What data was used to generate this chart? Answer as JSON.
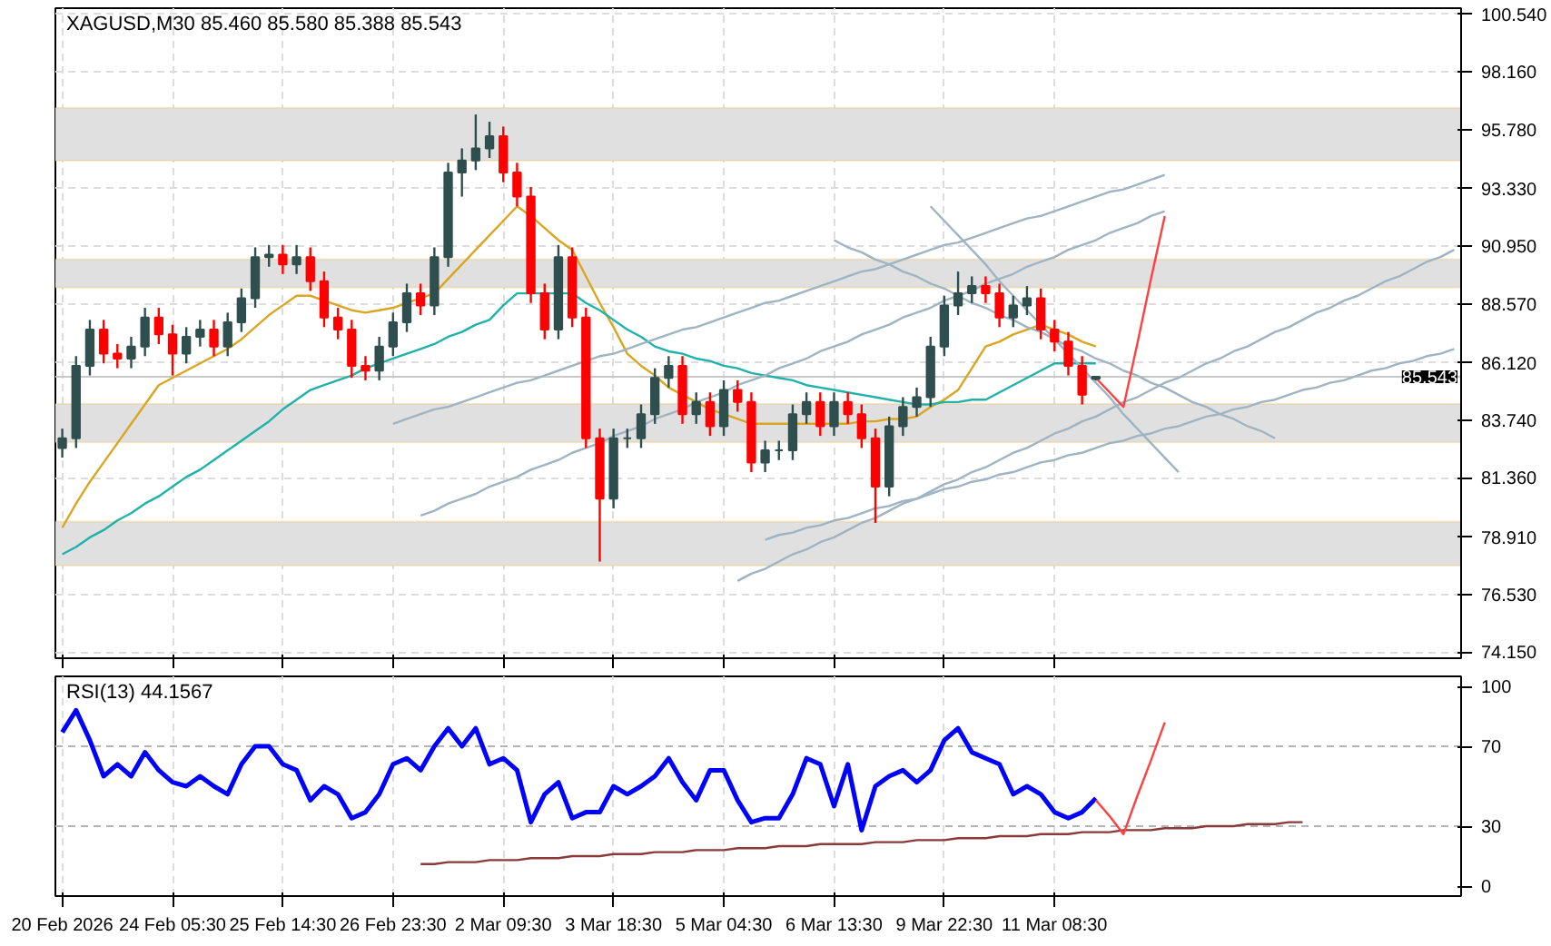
{
  "chart_data": [
    {
      "type": "candlestick",
      "title": "XAGUSD,M30 85.460 85.580 85.388 85.543",
      "categories": [
        null,
        null,
        null,
        null,
        null,
        null,
        null,
        null,
        null,
        null,
        null,
        null,
        null,
        null,
        null,
        null,
        null,
        null,
        null,
        null,
        null,
        null,
        null,
        null,
        null,
        null,
        null,
        null,
        null,
        null,
        null,
        null,
        null,
        null,
        null,
        null,
        null,
        null,
        null,
        null,
        null,
        null,
        null,
        null,
        null,
        null,
        null,
        null,
        null,
        null,
        null,
        null,
        null,
        null,
        null,
        null,
        null,
        null,
        null,
        null,
        null,
        null,
        null,
        null,
        null,
        null,
        null,
        null,
        null,
        null,
        null,
        null,
        null,
        null,
        null,
        null,
        null,
        null,
        null,
        null,
        null,
        null,
        null,
        null,
        null,
        null,
        null,
        null,
        null,
        null,
        null,
        null,
        null,
        null,
        null,
        null,
        null,
        null,
        null,
        null,
        null,
        null
      ],
      "ohlc": [
        [
          82.6,
          83.4,
          82.2,
          83.0
        ],
        [
          83.0,
          86.4,
          82.6,
          86.0
        ],
        [
          86.0,
          87.9,
          85.6,
          87.5
        ],
        [
          87.5,
          87.9,
          86.1,
          86.5
        ],
        [
          86.5,
          86.9,
          85.9,
          86.3
        ],
        [
          86.3,
          87.2,
          85.9,
          86.8
        ],
        [
          86.8,
          88.4,
          86.4,
          88.0
        ],
        [
          88.0,
          88.4,
          86.9,
          87.3
        ],
        [
          87.3,
          87.7,
          85.6,
          86.5
        ],
        [
          86.5,
          87.6,
          86.1,
          87.2
        ],
        [
          87.2,
          87.9,
          86.8,
          87.5
        ],
        [
          87.5,
          87.9,
          86.4,
          86.8
        ],
        [
          86.8,
          88.2,
          86.4,
          87.8
        ],
        [
          87.8,
          89.2,
          87.4,
          88.8
        ],
        [
          88.8,
          90.9,
          88.4,
          90.5
        ],
        [
          90.5,
          91.0,
          90.1,
          90.6
        ],
        [
          90.6,
          91.0,
          89.8,
          90.2
        ],
        [
          90.2,
          91.0,
          89.8,
          90.5
        ],
        [
          90.5,
          90.9,
          89.1,
          89.5
        ],
        [
          89.5,
          89.9,
          87.6,
          88.0
        ],
        [
          88.0,
          88.4,
          87.1,
          87.5
        ],
        [
          87.5,
          87.9,
          85.5,
          86.0
        ],
        [
          86.0,
          86.4,
          85.4,
          85.8
        ],
        [
          85.8,
          87.2,
          85.4,
          86.8
        ],
        [
          86.8,
          88.2,
          86.4,
          87.8
        ],
        [
          87.8,
          89.4,
          87.4,
          89.0
        ],
        [
          89.0,
          89.4,
          88.1,
          88.5
        ],
        [
          88.5,
          90.9,
          88.1,
          90.5
        ],
        [
          90.5,
          94.4,
          90.1,
          94.0
        ],
        [
          94.0,
          95.0,
          93.0,
          94.5
        ],
        [
          94.5,
          96.4,
          94.1,
          95.0
        ],
        [
          95.0,
          96.1,
          94.6,
          95.5
        ],
        [
          95.5,
          95.9,
          93.6,
          94.0
        ],
        [
          94.0,
          94.4,
          92.6,
          93.0
        ],
        [
          93.0,
          93.4,
          88.6,
          89.0
        ],
        [
          89.0,
          89.4,
          87.1,
          87.5
        ],
        [
          87.5,
          91.0,
          87.1,
          90.5
        ],
        [
          90.5,
          90.9,
          87.6,
          88.0
        ],
        [
          88.0,
          88.4,
          82.6,
          83.0
        ],
        [
          83.0,
          83.4,
          77.9,
          80.5
        ],
        [
          80.5,
          83.4,
          80.1,
          83.0
        ],
        [
          83.0,
          83.4,
          82.6,
          83.0
        ],
        [
          83.0,
          84.4,
          82.6,
          84.0
        ],
        [
          84.0,
          85.9,
          83.6,
          85.5
        ],
        [
          85.5,
          86.4,
          85.1,
          86.0
        ],
        [
          86.0,
          86.4,
          83.6,
          84.0
        ],
        [
          84.0,
          84.9,
          83.6,
          84.5
        ],
        [
          84.5,
          84.9,
          83.1,
          83.5
        ],
        [
          83.5,
          85.4,
          83.1,
          85.0
        ],
        [
          85.0,
          85.4,
          84.1,
          84.5
        ],
        [
          84.5,
          84.9,
          81.6,
          82.0
        ],
        [
          82.0,
          82.9,
          81.6,
          82.5
        ],
        [
          82.5,
          82.9,
          82.1,
          82.5
        ],
        [
          82.5,
          84.4,
          82.1,
          84.0
        ],
        [
          84.0,
          84.9,
          83.6,
          84.5
        ],
        [
          84.5,
          84.9,
          83.1,
          83.5
        ],
        [
          83.5,
          84.9,
          83.1,
          84.5
        ],
        [
          84.5,
          84.9,
          83.6,
          84.0
        ],
        [
          84.0,
          84.4,
          82.6,
          83.0
        ],
        [
          83.0,
          83.4,
          79.5,
          81.0
        ],
        [
          81.0,
          83.9,
          80.6,
          83.5
        ],
        [
          83.5,
          84.7,
          83.1,
          84.3
        ],
        [
          84.3,
          85.1,
          83.9,
          84.7
        ],
        [
          84.7,
          87.2,
          84.3,
          86.8
        ],
        [
          86.8,
          88.9,
          86.4,
          88.5
        ],
        [
          88.5,
          89.9,
          88.1,
          89.0
        ],
        [
          89.0,
          89.7,
          88.6,
          89.3
        ],
        [
          89.3,
          89.7,
          88.6,
          89.0
        ],
        [
          89.0,
          89.4,
          87.6,
          88.0
        ],
        [
          88.0,
          88.9,
          87.6,
          88.5
        ],
        [
          88.5,
          89.3,
          88.1,
          88.8
        ],
        [
          88.8,
          89.2,
          87.1,
          87.5
        ],
        [
          87.5,
          87.9,
          86.6,
          87.0
        ],
        [
          87.0,
          87.4,
          85.6,
          86.0
        ],
        [
          86.0,
          86.4,
          84.4,
          84.8
        ],
        [
          85.46,
          85.58,
          85.388,
          85.543
        ],
        null,
        null,
        null,
        null,
        null,
        null,
        null,
        null,
        null,
        null,
        null,
        null,
        null,
        null,
        null,
        null,
        null,
        null,
        null,
        null,
        null,
        null,
        null,
        null,
        null,
        null
      ],
      "colors": [
        "#2f4f4f",
        "#2f4f4f",
        "#2f4f4f",
        "#ff0000",
        "#ff0000",
        "#2f4f4f",
        "#2f4f4f",
        "#ff0000",
        "#ff0000",
        "#2f4f4f",
        "#2f4f4f",
        "#ff0000",
        "#2f4f4f",
        "#2f4f4f",
        "#2f4f4f",
        "#2f4f4f",
        "#ff0000",
        "#2f4f4f",
        "#ff0000",
        "#ff0000",
        "#ff0000",
        "#ff0000",
        "#ff0000",
        "#2f4f4f",
        "#2f4f4f",
        "#2f4f4f",
        "#ff0000",
        "#2f4f4f",
        "#2f4f4f",
        "#2f4f4f",
        "#2f4f4f",
        "#2f4f4f",
        "#ff0000",
        "#ff0000",
        "#ff0000",
        "#ff0000",
        "#2f4f4f",
        "#ff0000",
        "#ff0000",
        "#ff0000",
        "#2f4f4f",
        "#2f4f4f",
        "#2f4f4f",
        "#2f4f4f",
        "#2f4f4f",
        "#ff0000",
        "#2f4f4f",
        "#ff0000",
        "#2f4f4f",
        "#ff0000",
        "#ff0000",
        "#2f4f4f",
        "#2f4f4f",
        "#2f4f4f",
        "#2f4f4f",
        "#ff0000",
        "#2f4f4f",
        "#ff0000",
        "#ff0000",
        "#ff0000",
        "#2f4f4f",
        "#2f4f4f",
        "#2f4f4f",
        "#2f4f4f",
        "#2f4f4f",
        "#2f4f4f",
        "#2f4f4f",
        "#ff0000",
        "#ff0000",
        "#2f4f4f",
        "#2f4f4f",
        "#ff0000",
        "#ff0000",
        "#ff0000",
        "#ff0000",
        "#2f4f4f",
        null,
        null,
        null,
        null,
        null,
        null,
        null,
        null,
        null,
        null,
        null,
        null,
        null,
        null,
        null,
        null,
        null,
        null,
        null,
        null,
        null,
        null,
        null,
        null,
        null,
        null
      ],
      "series": [
        {
          "type": "line",
          "color": "#daa520",
          "values": [
            79.3,
            80.3,
            81.2,
            82.0,
            82.8,
            83.6,
            84.4,
            85.2,
            85.5,
            85.8,
            86.1,
            86.4,
            86.7,
            87.1,
            87.6,
            88.1,
            88.5,
            88.9,
            88.9,
            88.7,
            88.5,
            88.3,
            88.2,
            88.3,
            88.4,
            88.6,
            88.8,
            89.0,
            89.6,
            90.2,
            90.8,
            91.4,
            92.0,
            92.6,
            92.2,
            91.7,
            91.2,
            90.8,
            89.7,
            88.6,
            87.6,
            86.5,
            86.0,
            85.6,
            85.1,
            84.8,
            84.5,
            84.2,
            84.0,
            83.8,
            83.6,
            83.6,
            83.6,
            83.6,
            83.6,
            83.6,
            83.6,
            83.6,
            83.7,
            83.7,
            83.8,
            83.8,
            83.9,
            84.3,
            84.6,
            85.0,
            85.9,
            86.8,
            87.0,
            87.3,
            87.5,
            87.7,
            87.5,
            87.3,
            87.0,
            86.8,
            null,
            null,
            null,
            null,
            null,
            null,
            null,
            null,
            null,
            null,
            null,
            null,
            null,
            null,
            null,
            null,
            null,
            null,
            null,
            null,
            null,
            null,
            null,
            null,
            null,
            null
          ]
        },
        {
          "type": "line",
          "color": "#20b2aa",
          "values": [
            78.2,
            78.5,
            78.9,
            79.2,
            79.6,
            79.9,
            80.3,
            80.6,
            81.0,
            81.4,
            81.7,
            82.1,
            82.5,
            82.9,
            83.3,
            83.7,
            84.2,
            84.6,
            85.0,
            85.2,
            85.4,
            85.6,
            85.9,
            86.1,
            86.3,
            86.5,
            86.7,
            86.9,
            87.2,
            87.4,
            87.7,
            87.9,
            88.5,
            89.0,
            89.0,
            89.0,
            89.0,
            89.0,
            88.6,
            88.3,
            87.9,
            87.5,
            87.2,
            86.8,
            86.6,
            86.5,
            86.3,
            86.2,
            86.0,
            85.9,
            85.7,
            85.6,
            85.5,
            85.4,
            85.2,
            85.1,
            85.0,
            84.9,
            84.8,
            84.7,
            84.6,
            84.5,
            84.4,
            84.4,
            84.5,
            84.5,
            84.6,
            84.6,
            84.9,
            85.2,
            85.5,
            85.8,
            86.1,
            86.1,
            86.1,
            86.1,
            null,
            null,
            null,
            null,
            null,
            null,
            null,
            null,
            null,
            null,
            null,
            null,
            null,
            null,
            null,
            null,
            null,
            null,
            null,
            null,
            null,
            null,
            null,
            null,
            null,
            null
          ]
        },
        {
          "type": "line",
          "color": "#9fb4c2",
          "values": [
            null,
            null,
            null,
            null,
            null,
            null,
            null,
            null,
            null,
            null,
            null,
            null,
            null,
            null,
            null,
            null,
            null,
            null,
            null,
            null,
            null,
            null,
            null,
            null,
            83.6,
            83.8,
            84.0,
            84.2,
            84.3,
            84.5,
            84.7,
            84.9,
            85.1,
            85.3,
            85.4,
            85.6,
            85.8,
            86.0,
            86.2,
            86.4,
            86.5,
            86.7,
            86.9,
            87.1,
            87.3,
            87.5,
            87.6,
            87.8,
            88.0,
            88.2,
            88.4,
            88.6,
            88.7,
            88.9,
            89.1,
            89.3,
            89.5,
            89.7,
            89.9,
            90.0,
            90.2,
            90.4,
            90.6,
            90.8,
            91.0,
            91.1,
            91.3,
            91.5,
            91.7,
            91.9,
            92.1,
            92.2,
            92.4,
            92.6,
            92.8,
            93.0,
            93.2,
            93.3,
            93.5,
            93.7,
            93.9,
            null,
            null,
            null,
            null,
            null,
            null,
            null,
            null,
            null,
            null,
            null,
            null,
            null,
            null,
            null,
            null,
            null,
            null,
            null,
            null,
            null
          ]
        },
        {
          "type": "line",
          "color": "#9fb4c2",
          "values": [
            null,
            null,
            null,
            null,
            null,
            null,
            null,
            null,
            null,
            null,
            null,
            null,
            null,
            null,
            null,
            null,
            null,
            null,
            null,
            null,
            null,
            null,
            null,
            null,
            null,
            null,
            79.8,
            80.0,
            80.3,
            80.5,
            80.7,
            81.0,
            81.2,
            81.4,
            81.7,
            81.9,
            82.1,
            82.4,
            82.6,
            82.8,
            83.1,
            83.3,
            83.5,
            83.8,
            84.0,
            84.2,
            84.5,
            84.7,
            84.9,
            85.2,
            85.4,
            85.6,
            85.9,
            86.1,
            86.3,
            86.6,
            86.8,
            87.0,
            87.3,
            87.5,
            87.7,
            88.0,
            88.2,
            88.4,
            88.7,
            88.9,
            89.1,
            89.4,
            89.6,
            89.8,
            90.1,
            90.3,
            90.5,
            90.8,
            91.0,
            91.2,
            91.5,
            91.7,
            91.9,
            92.2,
            92.4,
            null,
            null,
            null,
            null,
            null,
            null,
            null,
            null,
            null,
            null,
            null,
            null,
            null,
            null,
            null,
            null,
            null,
            null,
            null,
            null,
            null
          ]
        },
        {
          "type": "line",
          "color": "#9fb4c2",
          "values": [
            null,
            null,
            null,
            null,
            null,
            null,
            null,
            null,
            null,
            null,
            null,
            null,
            null,
            null,
            null,
            null,
            null,
            null,
            null,
            null,
            null,
            null,
            null,
            null,
            null,
            null,
            null,
            null,
            null,
            null,
            null,
            null,
            null,
            null,
            null,
            null,
            null,
            null,
            null,
            null,
            null,
            null,
            null,
            null,
            null,
            null,
            null,
            null,
            null,
            null,
            null,
            null,
            null,
            null,
            null,
            null,
            91.2,
            90.9,
            90.7,
            90.4,
            90.2,
            89.9,
            89.7,
            89.4,
            89.2,
            88.9,
            88.6,
            88.4,
            88.1,
            87.9,
            87.6,
            87.4,
            87.1,
            86.8,
            86.6,
            86.3,
            86.1,
            85.8,
            85.6,
            85.3,
            85.1,
            84.8,
            84.5,
            84.3,
            84.0,
            83.8,
            83.5,
            83.3,
            83.0,
            null,
            null,
            null,
            null,
            null,
            null,
            null,
            null,
            null,
            null,
            null,
            null,
            null
          ]
        },
        {
          "type": "line",
          "color": "#9fb4c2",
          "values": [
            null,
            null,
            null,
            null,
            null,
            null,
            null,
            null,
            null,
            null,
            null,
            null,
            null,
            null,
            null,
            null,
            null,
            null,
            null,
            null,
            null,
            null,
            null,
            null,
            null,
            null,
            null,
            null,
            null,
            null,
            null,
            null,
            null,
            null,
            null,
            null,
            null,
            null,
            null,
            null,
            null,
            null,
            null,
            null,
            null,
            null,
            null,
            null,
            null,
            null,
            null,
            null,
            null,
            null,
            null,
            null,
            null,
            null,
            null,
            null,
            null,
            null,
            null,
            92.6,
            92.0,
            91.4,
            90.8,
            90.2,
            89.5,
            88.9,
            88.3,
            87.7,
            87.1,
            86.5,
            85.9,
            85.3,
            84.7,
            84.0,
            83.4,
            82.8,
            82.2,
            81.6,
            null,
            null,
            null,
            null,
            null,
            null,
            null,
            null,
            null,
            null,
            null,
            null,
            null,
            null,
            null,
            null,
            null,
            null,
            null,
            null
          ]
        },
        {
          "type": "line",
          "color": "#9fb4c2",
          "values": [
            null,
            null,
            null,
            null,
            null,
            null,
            null,
            null,
            null,
            null,
            null,
            null,
            null,
            null,
            null,
            null,
            null,
            null,
            null,
            null,
            null,
            null,
            null,
            null,
            null,
            null,
            null,
            null,
            null,
            null,
            null,
            null,
            null,
            null,
            null,
            null,
            null,
            null,
            null,
            null,
            null,
            null,
            null,
            null,
            null,
            null,
            null,
            null,
            null,
            77.1,
            77.4,
            77.6,
            77.9,
            78.2,
            78.4,
            78.7,
            78.9,
            79.2,
            79.5,
            79.7,
            80.0,
            80.3,
            80.5,
            80.8,
            81.1,
            81.3,
            81.6,
            81.8,
            82.1,
            82.4,
            82.6,
            82.9,
            83.2,
            83.4,
            83.7,
            83.9,
            84.2,
            84.5,
            84.7,
            85.0,
            85.3,
            85.5,
            85.8,
            86.1,
            86.3,
            86.6,
            86.8,
            87.1,
            87.4,
            87.6,
            87.9,
            88.2,
            88.4,
            88.7,
            88.9,
            89.2,
            89.5,
            89.7,
            90.0,
            90.3,
            90.5,
            90.8
          ]
        },
        {
          "type": "line",
          "color": "#9fb4c2",
          "values": [
            null,
            null,
            null,
            null,
            null,
            null,
            null,
            null,
            null,
            null,
            null,
            null,
            null,
            null,
            null,
            null,
            null,
            null,
            null,
            null,
            null,
            null,
            null,
            null,
            null,
            null,
            null,
            null,
            null,
            null,
            null,
            null,
            null,
            null,
            null,
            null,
            null,
            null,
            null,
            null,
            null,
            null,
            null,
            null,
            null,
            null,
            null,
            null,
            null,
            null,
            null,
            78.8,
            79.0,
            79.1,
            79.3,
            79.4,
            79.6,
            79.7,
            79.9,
            80.1,
            80.2,
            80.4,
            80.5,
            80.7,
            80.9,
            81.0,
            81.2,
            81.3,
            81.5,
            81.6,
            81.8,
            82.0,
            82.1,
            82.3,
            82.4,
            82.6,
            82.8,
            82.9,
            83.1,
            83.2,
            83.4,
            83.5,
            83.7,
            83.9,
            84.0,
            84.2,
            84.3,
            84.5,
            84.6,
            84.8,
            85.0,
            85.1,
            85.3,
            85.4,
            85.6,
            85.8,
            85.9,
            86.1,
            86.2,
            86.4,
            86.5,
            86.7
          ]
        },
        {
          "type": "line",
          "color": "#ff4040",
          "values": [
            null,
            null,
            null,
            null,
            null,
            null,
            null,
            null,
            null,
            null,
            null,
            null,
            null,
            null,
            null,
            null,
            null,
            null,
            null,
            null,
            null,
            null,
            null,
            null,
            null,
            null,
            null,
            null,
            null,
            null,
            null,
            null,
            null,
            null,
            null,
            null,
            null,
            null,
            null,
            null,
            null,
            null,
            null,
            null,
            null,
            null,
            null,
            null,
            null,
            null,
            null,
            null,
            null,
            null,
            null,
            null,
            null,
            null,
            null,
            null,
            null,
            null,
            null,
            null,
            null,
            null,
            null,
            null,
            null,
            null,
            null,
            null,
            null,
            null,
            null,
            85.5,
            84.9,
            84.3,
            86.9,
            89.6,
            92.2,
            null,
            null,
            null,
            null,
            null,
            null,
            null,
            null,
            null,
            null,
            null,
            null,
            null,
            null,
            null,
            null,
            null,
            null,
            null,
            null,
            null
          ]
        }
      ],
      "bands": [
        {
          "axis": "y",
          "from": 94.49,
          "to": 96.68,
          "color": "#e0e0e0"
        },
        {
          "axis": "y",
          "from": 89.24,
          "to": 90.41,
          "color": "#e0e0e0"
        },
        {
          "axis": "y",
          "from": 82.83,
          "to": 84.43,
          "color": "#e0e0e0"
        },
        {
          "axis": "y",
          "from": 77.73,
          "to": 79.55,
          "color": "#e0e0e0"
        }
      ],
      "ref_lines": [
        {
          "axis": "y",
          "value": 85.543,
          "label": "85.543",
          "color": "#c8c8c8"
        }
      ],
      "ylim": [
        73.9,
        100.8
      ],
      "yticks": [
        {
          "value": 74.15,
          "label": "74.150"
        },
        {
          "value": 76.53,
          "label": "76.530"
        },
        {
          "value": 78.91,
          "label": "78.910"
        },
        {
          "value": 81.36,
          "label": "81.360"
        },
        {
          "value": 83.74,
          "label": "83.740"
        },
        {
          "value": 86.12,
          "label": "86.120"
        },
        {
          "value": 88.57,
          "label": "88.570"
        },
        {
          "value": 90.95,
          "label": "90.950"
        },
        {
          "value": 93.33,
          "label": "93.330"
        },
        {
          "value": 95.78,
          "label": "95.780"
        },
        {
          "value": 98.16,
          "label": "98.160"
        },
        {
          "value": 100.54,
          "label": "100.540"
        }
      ],
      "grid": true
    },
    {
      "type": "line",
      "title": "RSI(13) 44.1567",
      "categories": [
        "20 Feb 2026",
        null,
        null,
        null,
        null,
        null,
        null,
        null,
        "24 Feb 05:30",
        null,
        null,
        null,
        null,
        null,
        null,
        null,
        "25 Feb 14:30",
        null,
        null,
        null,
        null,
        null,
        null,
        null,
        "26 Feb 23:30",
        null,
        null,
        null,
        null,
        null,
        null,
        null,
        "2 Mar 09:30",
        null,
        null,
        null,
        null,
        null,
        null,
        null,
        "3 Mar 18:30",
        null,
        null,
        null,
        null,
        null,
        null,
        null,
        "5 Mar 04:30",
        null,
        null,
        null,
        null,
        null,
        null,
        null,
        "6 Mar 13:30",
        null,
        null,
        null,
        null,
        null,
        null,
        null,
        "9 Mar 22:30",
        null,
        null,
        null,
        null,
        null,
        null,
        null,
        "11 Mar 08:30",
        null,
        null,
        null,
        null,
        null,
        null,
        null,
        null,
        null,
        null,
        null,
        null,
        null,
        null,
        null,
        null,
        null,
        null,
        null,
        null,
        null,
        null,
        null,
        null,
        null,
        null,
        null,
        null,
        null
      ],
      "series": [
        {
          "color": "#0000ff",
          "values": [
            77,
            88,
            73,
            55,
            61,
            55,
            67,
            58,
            52,
            50,
            55,
            50,
            46,
            61,
            70,
            70,
            61,
            58,
            43,
            50,
            46,
            34,
            37,
            46,
            61,
            64,
            58,
            70,
            79,
            70,
            79,
            61,
            64,
            58,
            32,
            46,
            52,
            34,
            37,
            37,
            50,
            46,
            50,
            55,
            64,
            52,
            43,
            58,
            58,
            43,
            32,
            34,
            34,
            46,
            64,
            61,
            40,
            61,
            28,
            50,
            55,
            58,
            52,
            58,
            73,
            79,
            67,
            64,
            61,
            46,
            50,
            46,
            37,
            34,
            37,
            44,
            null,
            null,
            null,
            null,
            null,
            null,
            null,
            null,
            null,
            null,
            null,
            null,
            null,
            null,
            null,
            null,
            null,
            null,
            null,
            null,
            null,
            null,
            null,
            null,
            null,
            null
          ]
        },
        {
          "color": "#8b3a3a",
          "values": [
            null,
            null,
            null,
            null,
            null,
            null,
            null,
            null,
            null,
            null,
            null,
            null,
            null,
            null,
            null,
            null,
            null,
            null,
            null,
            null,
            null,
            null,
            null,
            null,
            null,
            null,
            11,
            11,
            12,
            12,
            12,
            13,
            13,
            13,
            14,
            14,
            14,
            15,
            15,
            15,
            16,
            16,
            16,
            17,
            17,
            17,
            18,
            18,
            18,
            19,
            19,
            19,
            20,
            20,
            20,
            21,
            21,
            21,
            21,
            22,
            22,
            22,
            23,
            23,
            23,
            24,
            24,
            24,
            25,
            25,
            25,
            26,
            26,
            26,
            27,
            27,
            27,
            28,
            28,
            28,
            29,
            29,
            29,
            30,
            30,
            30,
            31,
            31,
            31,
            32,
            32,
            null,
            null,
            null,
            null,
            null,
            null,
            null,
            null,
            null,
            null,
            null
          ]
        },
        {
          "color": "#ff4040",
          "values": [
            null,
            null,
            null,
            null,
            null,
            null,
            null,
            null,
            null,
            null,
            null,
            null,
            null,
            null,
            null,
            null,
            null,
            null,
            null,
            null,
            null,
            null,
            null,
            null,
            null,
            null,
            null,
            null,
            null,
            null,
            null,
            null,
            null,
            null,
            null,
            null,
            null,
            null,
            null,
            null,
            null,
            null,
            null,
            null,
            null,
            null,
            null,
            null,
            null,
            null,
            null,
            null,
            null,
            null,
            null,
            null,
            null,
            null,
            null,
            null,
            null,
            null,
            null,
            null,
            null,
            null,
            null,
            null,
            null,
            null,
            null,
            null,
            null,
            null,
            null,
            43,
            35,
            26,
            45,
            63,
            82,
            null,
            null,
            null,
            null,
            null,
            null,
            null,
            null,
            null,
            null,
            null,
            null,
            null,
            null,
            null,
            null,
            null,
            null,
            null,
            null,
            null
          ]
        }
      ],
      "ref_lines": [
        {
          "axis": "y",
          "value": 70,
          "color": "#b4b4b4",
          "line_style": "dashed"
        },
        {
          "axis": "y",
          "value": 30,
          "color": "#b4b4b4",
          "line_style": "dashed"
        }
      ],
      "ylim": [
        -5,
        105
      ],
      "yticks": [
        0,
        30,
        70,
        100
      ],
      "grid": "x"
    }
  ]
}
